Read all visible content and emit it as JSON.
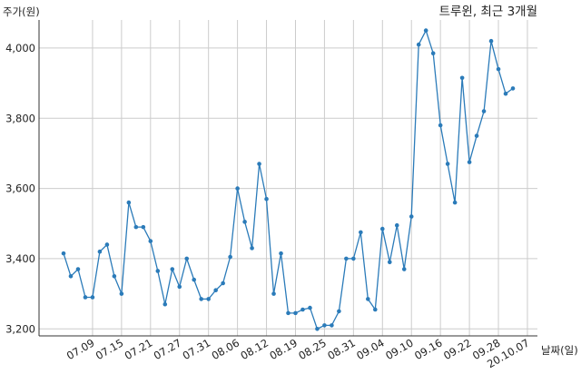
{
  "chart_data": {
    "type": "line",
    "title": "트루윈, 최근 3개월",
    "ylabel": "주가(원)",
    "xlabel": "날짜(일)",
    "ylim": [
      3180,
      4080
    ],
    "yticks": [
      3200,
      3400,
      3600,
      3800,
      4000
    ],
    "ytick_labels": [
      "3,200",
      "3,400",
      "3,600",
      "3,800",
      "4,000"
    ],
    "xtick_labels": [
      "07.09",
      "07.15",
      "07.21",
      "07.27",
      "07.31",
      "08.06",
      "08.12",
      "08.19",
      "08.25",
      "08.31",
      "09.04",
      "09.10",
      "09.16",
      "09.22",
      "09.28",
      "20.10.07"
    ],
    "xtick_index": [
      4,
      8,
      12,
      16,
      20,
      24,
      28,
      32,
      36,
      40,
      44,
      48,
      52,
      56,
      60,
      64
    ],
    "grid": true,
    "color": "#2b7bb9",
    "series": [
      {
        "values": [
          3415,
          3350,
          3370,
          3290,
          3290,
          3420,
          3440,
          3350,
          3300,
          3560,
          3490,
          3490,
          3450,
          3365,
          3270,
          3370,
          3320,
          3400,
          3340,
          3285,
          3285,
          3310,
          3330,
          3405,
          3600,
          3505,
          3430,
          3670,
          3570,
          3300,
          3415,
          3245,
          3245,
          3255,
          3260,
          3200,
          3210,
          3210,
          3250,
          3400,
          3400,
          3475,
          3285,
          3255,
          3485,
          3390,
          3495,
          3370,
          3520,
          4010,
          4050,
          3985,
          3780,
          3670,
          3560,
          3915,
          3675,
          3750,
          3820,
          4020,
          3940,
          3870,
          3885
        ]
      }
    ]
  }
}
